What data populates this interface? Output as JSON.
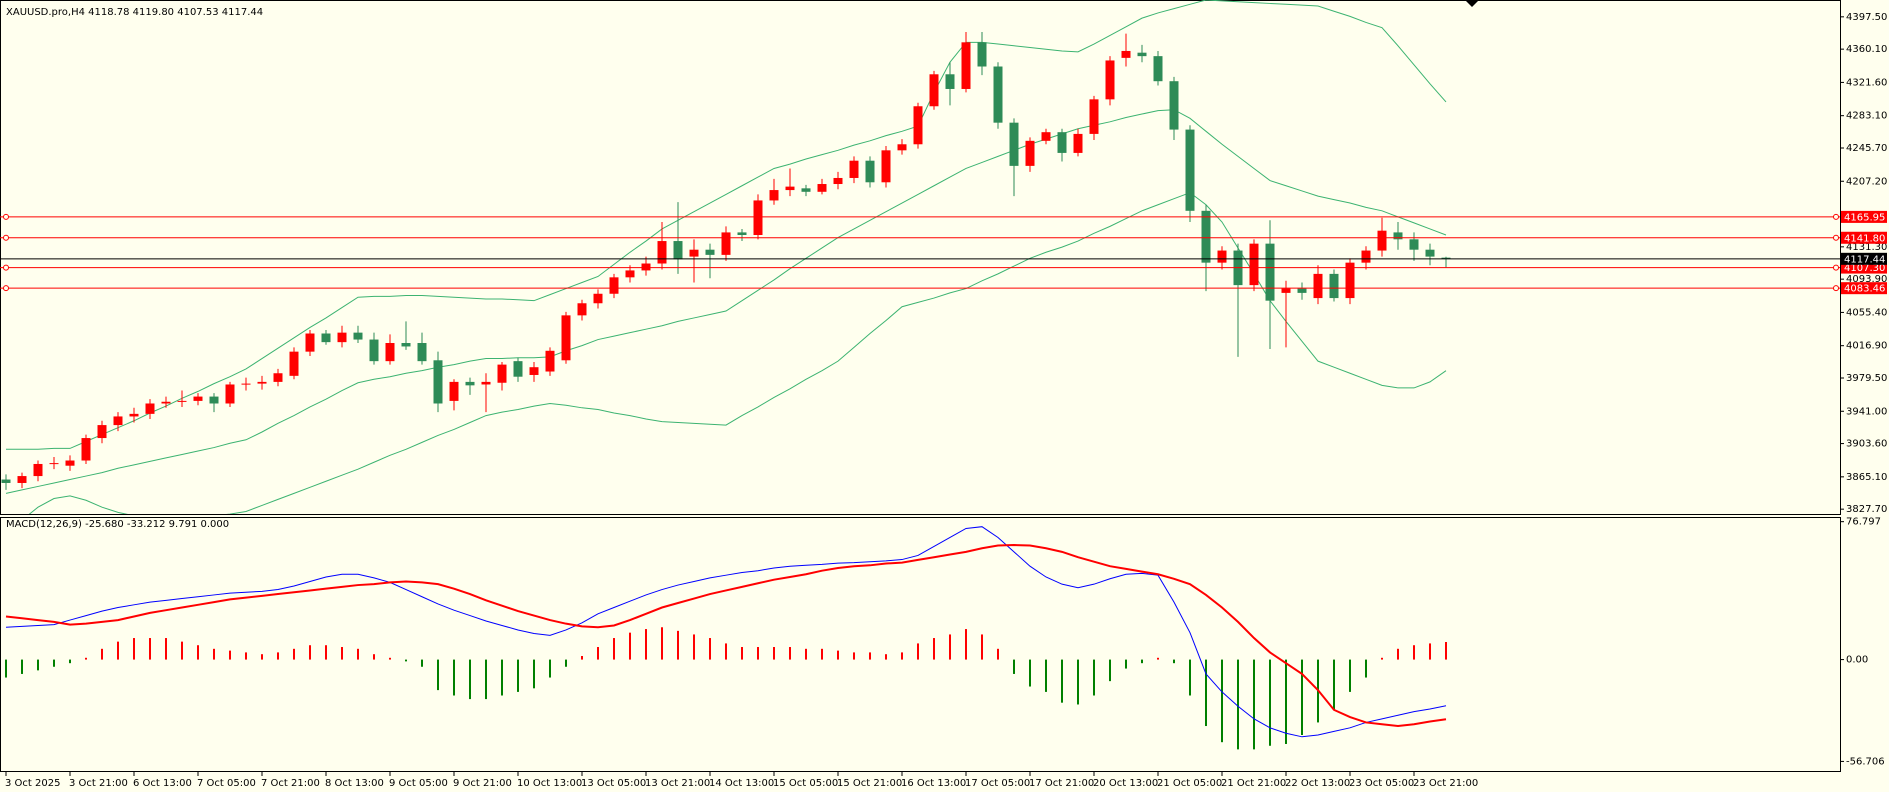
{
  "chart_data": [
    {
      "type": "candlestick",
      "title": "XAUUSD.pro,H4  4118.78 4119.80 4107.53 4117.44",
      "categories": [
        "3 Oct 2025",
        null,
        null,
        null,
        "3 Oct 21:00",
        null,
        null,
        null,
        "6 Oct 13:00",
        null,
        null,
        null,
        "7 Oct 05:00",
        null,
        null,
        null,
        "7 Oct 21:00",
        null,
        null,
        null,
        "8 Oct 13:00",
        null,
        null,
        null,
        "9 Oct 05:00",
        null,
        null,
        null,
        "9 Oct 21:00",
        null,
        null,
        null,
        "10 Oct 13:00",
        null,
        null,
        null,
        "13 Oct 05:00",
        null,
        null,
        null,
        "13 Oct 21:00",
        null,
        null,
        null,
        "14 Oct 13:00",
        null,
        null,
        null,
        "15 Oct 05:00",
        null,
        null,
        null,
        "15 Oct 21:00",
        null,
        null,
        null,
        "16 Oct 13:00",
        null,
        null,
        null,
        "17 Oct 05:00",
        null,
        null,
        null,
        "17 Oct 21:00",
        null,
        null,
        null,
        "20 Oct 13:00",
        null,
        null,
        null,
        "21 Oct 05:00",
        null,
        null,
        null,
        "21 Oct 21:00",
        null,
        null,
        null,
        "22 Oct 13:00",
        null,
        null,
        null,
        "23 Oct 05:00",
        null,
        null,
        null,
        "23 Oct 21:00",
        null,
        null
      ],
      "open": [
        3862,
        3858,
        3866,
        3880,
        3878,
        3884,
        3910,
        3925,
        3935,
        3938,
        3950,
        3952,
        3953,
        3958,
        3950,
        3972,
        3973,
        3975,
        3982,
        4010,
        4031,
        4021,
        4032,
        4024,
        3999,
        4020,
        4020,
        4000,
        3953,
        3975,
        3972,
        3974,
        3999,
        3983,
        3987,
        4000,
        4052,
        4066,
        4077,
        4096,
        4104,
        4112,
        4138,
        4120,
        4128,
        4122,
        4148,
        4145,
        4185,
        4197,
        4199,
        4195,
        4204,
        4211,
        4231,
        4206,
        4243,
        4250,
        4294,
        4331,
        4314,
        4368,
        4340,
        4275,
        4225,
        4254,
        4264,
        4240,
        4262,
        4302,
        4350,
        4356,
        4352,
        4323,
        4267,
        4173,
        4113,
        4127,
        4087,
        4135,
        4078,
        4083,
        4072,
        4100,
        4072,
        4113,
        4127,
        4148,
        4140,
        4128,
        4118.78
      ],
      "high": [
        3868,
        3870,
        3884,
        3888,
        3890,
        3914,
        3930,
        3940,
        3945,
        3955,
        3958,
        3965,
        3962,
        3962,
        3975,
        3980,
        3982,
        3990,
        4015,
        4035,
        4035,
        4040,
        4040,
        4032,
        4030,
        4045,
        4032,
        4010,
        3978,
        3980,
        3985,
        3998,
        4003,
        3998,
        4015,
        4056,
        4070,
        4082,
        4100,
        4110,
        4120,
        4160,
        4183,
        4140,
        4135,
        4155,
        4152,
        4192,
        4210,
        4222,
        4203,
        4210,
        4218,
        4236,
        4236,
        4248,
        4256,
        4298,
        4335,
        4345,
        4380,
        4380,
        4345,
        4280,
        4258,
        4268,
        4268,
        4268,
        4306,
        4352,
        4378,
        4365,
        4358,
        4328,
        4272,
        4180,
        4132,
        4135,
        4140,
        4162,
        4092,
        4090,
        4110,
        4105,
        4118,
        4132,
        4165,
        4160,
        4148,
        4135,
        4119.8
      ],
      "low": [
        3850,
        3852,
        3860,
        3874,
        3872,
        3880,
        3904,
        3918,
        3928,
        3932,
        3945,
        3946,
        3948,
        3940,
        3946,
        3965,
        3966,
        3970,
        3978,
        4005,
        4018,
        4015,
        4020,
        3995,
        3995,
        4012,
        3995,
        3940,
        3942,
        3960,
        3940,
        3965,
        3975,
        3975,
        3982,
        3996,
        4046,
        4060,
        4072,
        4090,
        4098,
        4105,
        4100,
        4090,
        4095,
        4115,
        4138,
        4140,
        4180,
        4190,
        4190,
        4192,
        4198,
        4205,
        4200,
        4200,
        4238,
        4245,
        4290,
        4295,
        4310,
        4330,
        4268,
        4190,
        4218,
        4250,
        4230,
        4236,
        4255,
        4295,
        4340,
        4345,
        4318,
        4255,
        4160,
        4080,
        4105,
        4004,
        4080,
        4013,
        4015,
        4070,
        4065,
        4068,
        4065,
        4105,
        4120,
        4128,
        4115,
        4110,
        4107.53
      ],
      "close": [
        3858,
        3866,
        3880,
        3881,
        3884,
        3910,
        3925,
        3935,
        3938,
        3950,
        3952,
        3953,
        3958,
        3950,
        3972,
        3973,
        3975,
        3985,
        4010,
        4031,
        4021,
        4032,
        4024,
        3999,
        4020,
        4016,
        3999,
        3950,
        3975,
        3971,
        3975,
        3995,
        3981,
        3992,
        4011,
        4052,
        4066,
        4077,
        4096,
        4104,
        4112,
        4138,
        4117,
        4128,
        4122,
        4148,
        4145,
        4185,
        4197,
        4201,
        4195,
        4204,
        4211,
        4231,
        4206,
        4243,
        4250,
        4294,
        4331,
        4314,
        4368,
        4340,
        4275,
        4225,
        4254,
        4264,
        4240,
        4262,
        4302,
        4347,
        4358,
        4352,
        4323,
        4267,
        4173,
        4113,
        4127,
        4087,
        4135,
        4069,
        4083,
        4078,
        4100,
        4072,
        4113,
        4127,
        4150,
        4140,
        4128,
        4120,
        4117.44
      ],
      "up_color": "#ff0000",
      "down_color": "#2e8b57",
      "lines": [
        {
          "color": "#3cb371",
          "values": [
            3897,
            3897,
            3897,
            3898,
            3898,
            3906,
            3914,
            3922,
            3930,
            3939,
            3947,
            3956,
            3964,
            3973,
            3981,
            3990,
            4002,
            4014,
            4026,
            4038,
            4049,
            4061,
            4073,
            4074,
            4074,
            4075,
            4075,
            4074,
            4073,
            4072,
            4071,
            4071,
            4070,
            4069,
            4076,
            4083,
            4090,
            4097,
            4111,
            4125,
            4138,
            4152,
            4162,
            4172,
            4182,
            4192,
            4202,
            4212,
            4222,
            4227,
            4233,
            4238,
            4243,
            4249,
            4254,
            4260,
            4265,
            4271,
            4310,
            4345,
            4368,
            4368,
            4366,
            4364,
            4362,
            4360,
            4358,
            4357,
            4366,
            4376,
            4386,
            4396,
            4402,
            4407,
            4412,
            4417,
            4416,
            4415,
            4414,
            4413,
            4412,
            4411,
            4410,
            4404,
            4398,
            4391,
            4385,
            4364,
            4342,
            4320,
            4299
          ]
        },
        {
          "color": "#3cb371",
          "values": [
            3846,
            3850,
            3854,
            3858,
            3862,
            3866,
            3870,
            3875,
            3879,
            3883,
            3887,
            3891,
            3895,
            3899,
            3904,
            3908,
            3917,
            3927,
            3936,
            3946,
            3955,
            3965,
            3974,
            3978,
            3981,
            3985,
            3988,
            3992,
            3995,
            3999,
            4002,
            4002,
            4003,
            4003,
            4004,
            4011,
            4017,
            4024,
            4028,
            4032,
            4036,
            4040,
            4045,
            4049,
            4053,
            4057,
            4069,
            4081,
            4093,
            4106,
            4118,
            4130,
            4142,
            4152,
            4162,
            4172,
            4182,
            4192,
            4202,
            4212,
            4222,
            4229,
            4236,
            4243,
            4250,
            4256,
            4262,
            4268,
            4272,
            4276,
            4281,
            4285,
            4289,
            4290,
            4280,
            4265,
            4250,
            4236,
            4222,
            4208,
            4202,
            4196,
            4190,
            4186,
            4182,
            4177,
            4173,
            4166,
            4159,
            4152,
            4145
          ]
        },
        {
          "color": "#3cb371",
          "values": [
            3800,
            3815,
            3830,
            3840,
            3843,
            3838,
            3830,
            3824,
            3820,
            3819,
            3818,
            3818,
            3819,
            3820,
            3822,
            3825,
            3832,
            3839,
            3846,
            3853,
            3860,
            3867,
            3874,
            3882,
            3890,
            3897,
            3905,
            3913,
            3920,
            3928,
            3936,
            3940,
            3943,
            3947,
            3950,
            3948,
            3945,
            3943,
            3939,
            3936,
            3932,
            3929,
            3928,
            3927,
            3926,
            3925,
            3936,
            3946,
            3957,
            3967,
            3978,
            3988,
            3999,
            4015,
            4031,
            4046,
            4062,
            4067,
            4072,
            4078,
            4083,
            4092,
            4100,
            4109,
            4118,
            4125,
            4131,
            4138,
            4147,
            4155,
            4164,
            4173,
            4180,
            4187,
            4194,
            4180,
            4160,
            4130,
            4100,
            4069,
            4045,
            4022,
            3999,
            3992,
            3985,
            3978,
            3971,
            3968,
            3968,
            3975,
            3988
          ]
        }
      ],
      "levels": [
        4165.95,
        {
          "value": 4141.8,
          "label": "4141.80"
        },
        {
          "value": 4107.3,
          "label": "4107.30"
        },
        4083.46
      ],
      "level_color": "#ff0000",
      "last_price": 4117.44,
      "last_price_color": "#000000",
      "ylim": [
        3822.1,
        4414.2
      ],
      "yticks": [
        {
          "value": 4397.5,
          "label": "4397.50"
        },
        {
          "value": 4360.1,
          "label": "4360.10"
        },
        {
          "value": 4321.6,
          "label": "4321.60"
        },
        {
          "value": 4283.1,
          "label": "4283.10"
        },
        {
          "value": 4245.7,
          "label": "4245.70"
        },
        {
          "value": 4207.2,
          "label": "4207.20"
        },
        {
          "value": 4131.3,
          "label": "4131.30"
        },
        {
          "value": 4093.9,
          "label": "4093.90"
        },
        {
          "value": 4055.4,
          "label": "4055.40"
        },
        {
          "value": 4016.9,
          "label": "4016.90"
        },
        {
          "value": 3979.5,
          "label": "3979.50"
        },
        {
          "value": 3941,
          "label": "3941.00"
        },
        {
          "value": 3903.6,
          "label": "3903.60"
        },
        {
          "value": 3865.1,
          "label": "3865.10"
        },
        {
          "value": 3827.7,
          "label": "3827.70"
        }
      ],
      "grid": false
    },
    {
      "type": "macd",
      "title": "MACD(12,26,9) -25.680 -33.212 9.791 0.000",
      "histogram": {
        "positive_color": "#ff0000",
        "negative_color": "#008000",
        "values": [
          -10,
          -8,
          -6,
          -4,
          -2,
          1,
          6,
          10,
          12,
          12,
          12,
          10,
          8,
          6,
          5,
          4,
          3,
          4,
          6,
          8,
          8,
          7,
          6,
          3,
          1,
          -1,
          -4,
          -17,
          -20,
          -22,
          -22,
          -20,
          -18,
          -16,
          -10,
          -4,
          2,
          7,
          12,
          15,
          17,
          18,
          16,
          14,
          12,
          9,
          7,
          7,
          7,
          7,
          6,
          6,
          5,
          4,
          4,
          3,
          4,
          9,
          12,
          14,
          17,
          14,
          6,
          -8,
          -15,
          -18,
          -24,
          -25,
          -20,
          -12,
          -5,
          -2,
          1,
          -2,
          -20,
          -37,
          -46,
          -50,
          -50,
          -48,
          -47,
          -42,
          -35,
          -28,
          -18,
          -10,
          1,
          6,
          8,
          9,
          9.791
        ]
      },
      "lines": [
        {
          "color": "#0000ff",
          "width": 1,
          "values": [
            18,
            18.5,
            19,
            19.5,
            22,
            24.5,
            27,
            29,
            30.5,
            32,
            33,
            34,
            35,
            36,
            37,
            37.5,
            38,
            39,
            41,
            43.5,
            46,
            47.5,
            47.5,
            45.5,
            43,
            39,
            35,
            31,
            27.5,
            24.5,
            21.5,
            19,
            16.5,
            14.5,
            13.5,
            16.5,
            20.5,
            25.5,
            29,
            32.5,
            36,
            39,
            41.5,
            43.5,
            45.5,
            47,
            48.5,
            49.5,
            51,
            52,
            52.5,
            53,
            53.7,
            54,
            54.5,
            55,
            55.7,
            58,
            63,
            68,
            73,
            74,
            68,
            60,
            52,
            46,
            42,
            40,
            42,
            45,
            47.5,
            48,
            47,
            32,
            15,
            -8,
            -18,
            -26,
            -33,
            -38,
            -41,
            -43,
            -42,
            -40,
            -38,
            -35,
            -33,
            -31,
            -29,
            -27.5,
            -25.68
          ]
        },
        {
          "color": "#ff0000",
          "width": 2,
          "values": [
            24,
            23,
            22,
            21,
            19.5,
            20,
            21,
            22,
            24,
            26,
            27.5,
            29,
            30.5,
            32,
            33.5,
            34.5,
            35.5,
            36.5,
            37.5,
            38.5,
            39.5,
            40.5,
            41.5,
            42,
            43,
            43.5,
            43,
            42,
            39.5,
            36.5,
            33,
            30,
            27,
            24.5,
            22,
            20,
            18.5,
            18,
            19,
            22,
            25.5,
            29,
            31.5,
            34,
            36.5,
            38.5,
            40.5,
            42.5,
            44.5,
            46,
            47.5,
            49.5,
            51,
            52,
            52.5,
            53.5,
            54,
            55.5,
            57,
            58.5,
            60,
            62,
            63.5,
            63.8,
            63.5,
            62,
            60,
            57,
            54.5,
            52,
            50.5,
            49,
            47.5,
            45,
            42,
            36,
            29,
            21,
            12,
            4,
            -2,
            -8,
            -17,
            -28,
            -32,
            -35,
            -36,
            -37,
            -36,
            -34.5,
            -33.212
          ]
        }
      ],
      "ylim": [
        -62.6,
        79.4
      ],
      "yticks": [
        76.797,
        {
          "value": 0,
          "label": "0.00"
        },
        -56.706
      ],
      "grid": false
    }
  ]
}
